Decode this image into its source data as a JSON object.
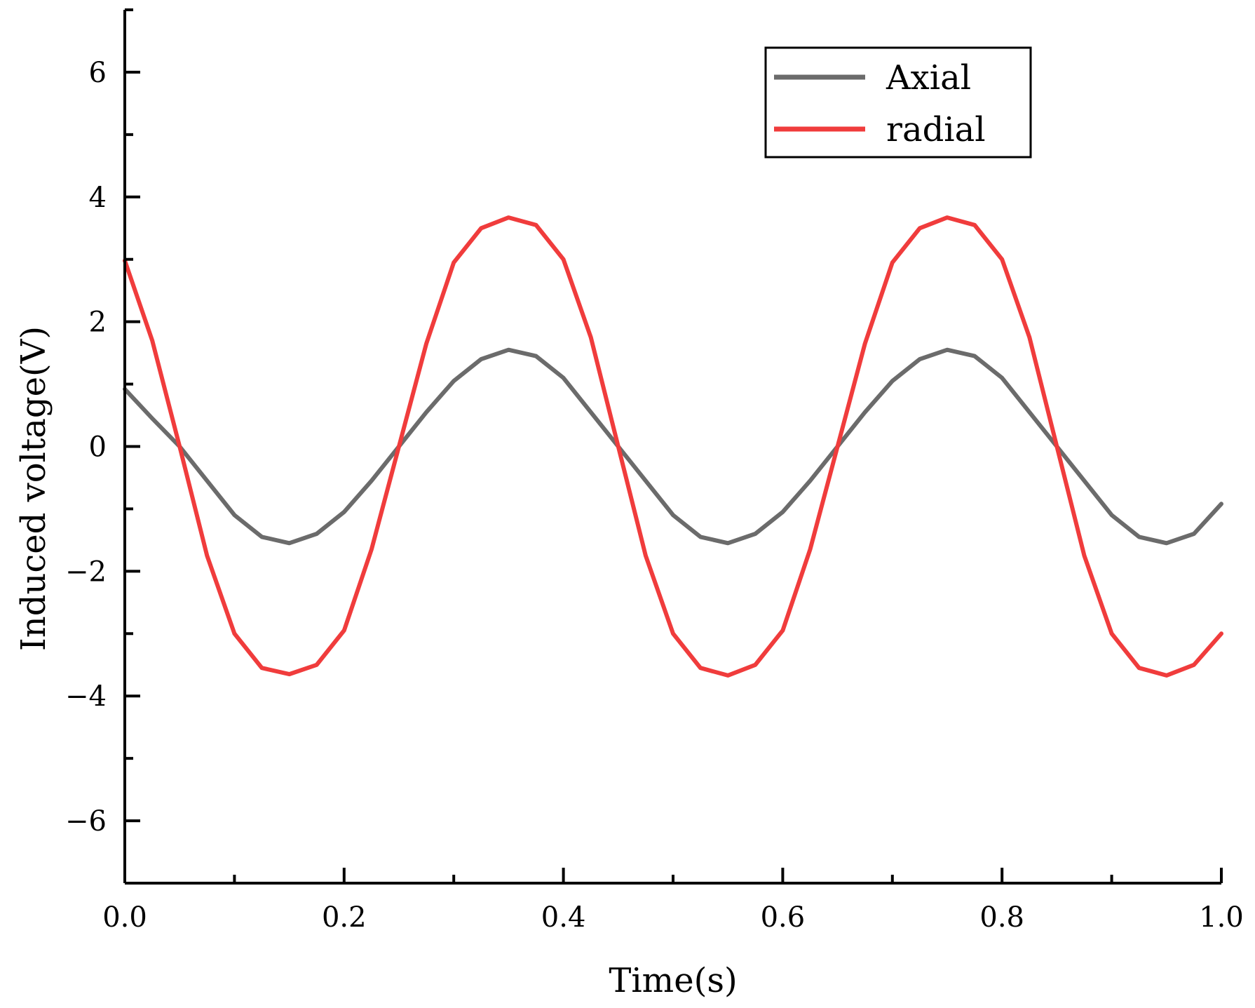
{
  "chart_data": {
    "type": "line",
    "xlabel": "Time(s)",
    "ylabel": "Induced voltage(V)",
    "xlim": [
      0.0,
      1.0
    ],
    "ylim": [
      -7,
      7
    ],
    "xticks": [
      0.0,
      0.2,
      0.4,
      0.6,
      0.8,
      1.0
    ],
    "xtick_labels": [
      "0.0",
      "0.2",
      "0.4",
      "0.6",
      "0.8",
      "1.0"
    ],
    "yticks": [
      6,
      4,
      2,
      0,
      -2,
      -4,
      -6
    ],
    "ytick_labels": [
      "6",
      "4",
      "2",
      "0",
      "−2",
      "−4",
      "−6"
    ],
    "grid": false,
    "legend_position": "top-right",
    "x": [
      0.0,
      0.025,
      0.05,
      0.075,
      0.1,
      0.125,
      0.15,
      0.175,
      0.2,
      0.225,
      0.25,
      0.275,
      0.3,
      0.325,
      0.35,
      0.375,
      0.4,
      0.425,
      0.45,
      0.475,
      0.5,
      0.525,
      0.55,
      0.575,
      0.6,
      0.625,
      0.65,
      0.675,
      0.7,
      0.725,
      0.75,
      0.775,
      0.8,
      0.825,
      0.85,
      0.875,
      0.9,
      0.925,
      0.95,
      0.975,
      1.0
    ],
    "series": [
      {
        "name": "Axial",
        "color": "#6b6b6b",
        "values": [
          0.92,
          0.45,
          0.0,
          -0.55,
          -1.1,
          -1.45,
          -1.55,
          -1.4,
          -1.05,
          -0.55,
          0.0,
          0.55,
          1.05,
          1.4,
          1.55,
          1.45,
          1.1,
          0.55,
          0.0,
          -0.55,
          -1.1,
          -1.45,
          -1.55,
          -1.4,
          -1.05,
          -0.55,
          0.0,
          0.55,
          1.05,
          1.4,
          1.55,
          1.45,
          1.1,
          0.55,
          0.0,
          -0.55,
          -1.1,
          -1.45,
          -1.55,
          -1.4,
          -0.92
        ]
      },
      {
        "name": "radial",
        "color": "#f03c3c",
        "values": [
          2.98,
          1.7,
          0.0,
          -1.75,
          -3.0,
          -3.55,
          -3.65,
          -3.5,
          -2.95,
          -1.65,
          0.0,
          1.65,
          2.95,
          3.5,
          3.67,
          3.55,
          3.0,
          1.75,
          0.0,
          -1.75,
          -3.0,
          -3.55,
          -3.67,
          -3.5,
          -2.95,
          -1.65,
          0.0,
          1.65,
          2.95,
          3.5,
          3.67,
          3.55,
          3.0,
          1.75,
          0.0,
          -1.75,
          -3.0,
          -3.55,
          -3.67,
          -3.5,
          -3.0
        ]
      }
    ]
  }
}
